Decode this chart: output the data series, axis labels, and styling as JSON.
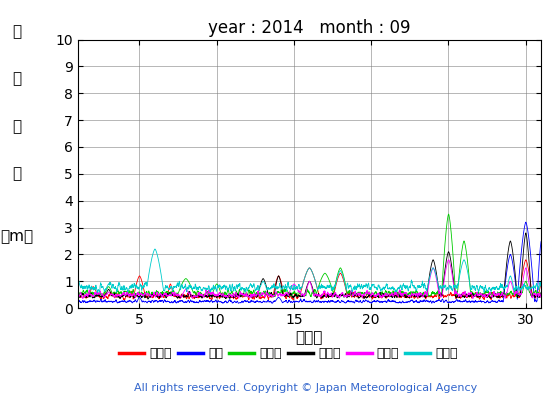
{
  "title": "year : 2014   month : 09",
  "xlabel": "（日）",
  "ylabels": [
    "有",
    "義",
    "波",
    "高",
    "（m）"
  ],
  "ylim": [
    0,
    10
  ],
  "yticks": [
    0,
    1,
    2,
    3,
    4,
    5,
    6,
    7,
    8,
    9,
    10
  ],
  "xlim": [
    1,
    31
  ],
  "xticks": [
    5,
    10,
    15,
    20,
    25,
    30
  ],
  "stations": [
    "上ノ国",
    "唐桑",
    "石廀崎",
    "経ヶ岸",
    "生月島",
    "屋久島"
  ],
  "colors": [
    "#ff0000",
    "#0000ff",
    "#00cc00",
    "#000000",
    "#ff00ff",
    "#00cccc"
  ],
  "copyright": "All rights reserved. Copyright © Japan Meteorological Agency",
  "background_color": "#ffffff",
  "title_fontsize": 12,
  "tick_fontsize": 10,
  "label_fontsize": 11,
  "copyright_fontsize": 8
}
